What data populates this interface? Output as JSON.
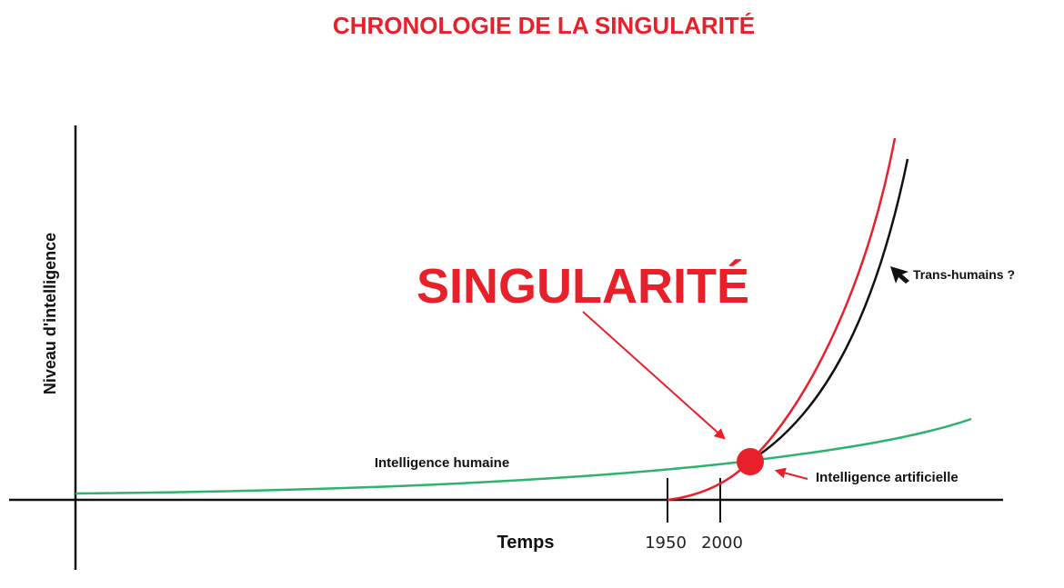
{
  "title": "CHRONOLOGIE DE LA SINGULARITÉ",
  "singularity_label": "SINGULARITÉ",
  "axes": {
    "x_label": "Temps",
    "y_label": "Niveau d'intelligence",
    "ticks": [
      "1950",
      "2000"
    ]
  },
  "curves": {
    "human": "Intelligence humaine",
    "artificial": "Intelligence artificielle",
    "transhuman": "Trans-humains ?"
  },
  "colors": {
    "accent": "#e8202a",
    "human_curve": "#2db36b",
    "axis": "#111111",
    "transhuman_curve": "#111111"
  }
}
